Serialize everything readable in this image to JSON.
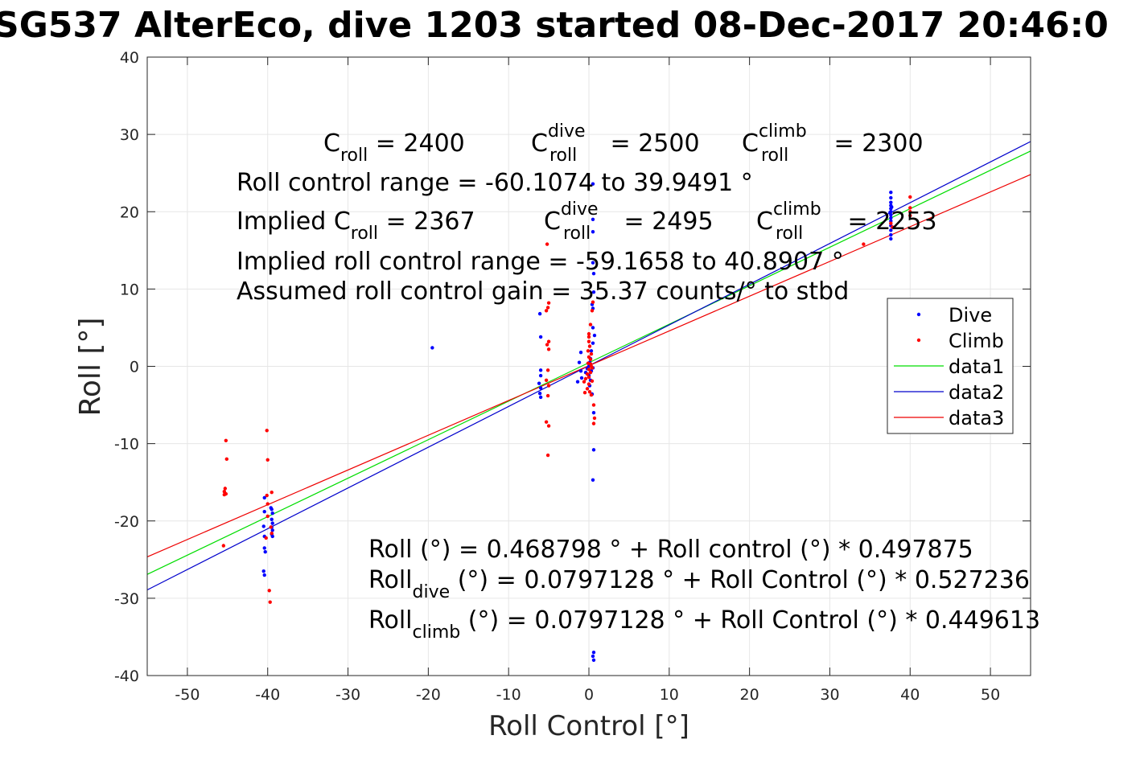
{
  "chart_data": {
    "type": "scatter",
    "title": "SG537 AlterEco, dive 1203 started 08-Dec-2017 20:46:0",
    "xlabel": "Roll Control [°]",
    "ylabel": "Roll [°]",
    "xlim": [
      -55,
      55
    ],
    "ylim": [
      -40,
      40
    ],
    "xticks": [
      -50,
      -40,
      -30,
      -20,
      -10,
      0,
      10,
      20,
      30,
      40,
      50
    ],
    "yticks": [
      -40,
      -30,
      -20,
      -10,
      0,
      10,
      20,
      30,
      40
    ],
    "grid": true,
    "legend": {
      "placement": "right",
      "entries": [
        {
          "name": "Dive",
          "color": "#0000ff",
          "style": "marker"
        },
        {
          "name": "Climb",
          "color": "#ff0000",
          "style": "marker"
        },
        {
          "name": "data1",
          "color": "#00dd00",
          "style": "line"
        },
        {
          "name": "data2",
          "color": "#0000cc",
          "style": "line"
        },
        {
          "name": "data3",
          "color": "#ee0000",
          "style": "line"
        }
      ]
    },
    "series": [
      {
        "name": "Dive",
        "kind": "points",
        "color": "#0000ff",
        "points": [
          [
            37.6,
            22.5
          ],
          [
            37.6,
            21.8
          ],
          [
            37.6,
            21.2
          ],
          [
            37.6,
            20.8
          ],
          [
            37.6,
            20.4
          ],
          [
            37.6,
            20.0
          ],
          [
            37.6,
            19.6
          ],
          [
            37.6,
            19.2
          ],
          [
            37.6,
            18.8
          ],
          [
            37.6,
            18.2
          ],
          [
            37.6,
            17.6
          ],
          [
            37.6,
            17.0
          ],
          [
            37.6,
            16.5
          ],
          [
            37.5,
            19.9
          ],
          [
            37.7,
            20.6
          ],
          [
            0.5,
            23.6
          ],
          [
            0.5,
            19.0
          ],
          [
            0.5,
            17.4
          ],
          [
            0.5,
            13.4
          ],
          [
            0.6,
            12.0
          ],
          [
            0.6,
            9.6
          ],
          [
            0.4,
            8.0
          ],
          [
            0.5,
            7.5
          ],
          [
            0.5,
            5.0
          ],
          [
            0.7,
            4.0
          ],
          [
            0.5,
            3.0
          ],
          [
            0.3,
            2.0
          ],
          [
            0.2,
            1.0
          ],
          [
            0.1,
            0.5
          ],
          [
            0.0,
            0.0
          ],
          [
            -0.2,
            -0.3
          ],
          [
            0.3,
            -0.6
          ],
          [
            -0.4,
            -0.8
          ],
          [
            0.0,
            -1.2
          ],
          [
            0.2,
            -1.8
          ],
          [
            0.1,
            -2.5
          ],
          [
            0.4,
            -3.6
          ],
          [
            0.6,
            -6.0
          ],
          [
            0.6,
            -10.8
          ],
          [
            0.5,
            -14.7
          ],
          [
            0.6,
            -37.0
          ],
          [
            0.5,
            -37.5
          ],
          [
            0.6,
            -38.0
          ],
          [
            -1.0,
            1.8
          ],
          [
            -1.2,
            0.5
          ],
          [
            -1.0,
            -0.6
          ],
          [
            -0.9,
            -1.5
          ],
          [
            -1.4,
            -2.0
          ],
          [
            0.5,
            -0.2
          ],
          [
            -6.0,
            3.8
          ],
          [
            -6.0,
            -0.5
          ],
          [
            -6.0,
            -1.2
          ],
          [
            -6.2,
            -2.2
          ],
          [
            -6.0,
            -2.8
          ],
          [
            -6.1,
            -3.5
          ],
          [
            -6.0,
            -4.0
          ],
          [
            -6.1,
            6.8
          ],
          [
            -19.5,
            2.4
          ],
          [
            -40.4,
            -17.0
          ],
          [
            -40.4,
            -18.8
          ],
          [
            -40.5,
            -20.7
          ],
          [
            -40.4,
            -22.0
          ],
          [
            -40.4,
            -23.5
          ],
          [
            -40.3,
            -24.0
          ],
          [
            -40.5,
            -26.5
          ],
          [
            -40.4,
            -27.0
          ],
          [
            -39.5,
            -18.5
          ],
          [
            -39.4,
            -19.0
          ],
          [
            -39.5,
            -19.8
          ],
          [
            -39.4,
            -20.3
          ],
          [
            -39.5,
            -20.8
          ],
          [
            -39.4,
            -21.2
          ],
          [
            -39.5,
            -21.7
          ],
          [
            -39.4,
            -22.0
          ],
          [
            -39.6,
            -18.3
          ]
        ]
      },
      {
        "name": "Climb",
        "kind": "points",
        "color": "#ff0000",
        "points": [
          [
            40.0,
            21.9
          ],
          [
            40.0,
            20.5
          ],
          [
            40.0,
            20.0
          ],
          [
            40.0,
            19.5
          ],
          [
            37.6,
            18.5
          ],
          [
            37.8,
            18.0
          ],
          [
            34.2,
            15.8
          ],
          [
            -5.2,
            15.8
          ],
          [
            -5.0,
            8.2
          ],
          [
            -5.1,
            7.6
          ],
          [
            -5.3,
            7.2
          ],
          [
            -5.0,
            3.2
          ],
          [
            -5.2,
            2.8
          ],
          [
            -5.0,
            2.2
          ],
          [
            -5.1,
            -0.5
          ],
          [
            -5.3,
            -1.8
          ],
          [
            -5.0,
            -2.5
          ],
          [
            -5.1,
            -3.8
          ],
          [
            -5.3,
            -7.2
          ],
          [
            -5.0,
            -7.7
          ],
          [
            -5.1,
            -11.5
          ],
          [
            0.5,
            8.3
          ],
          [
            0.4,
            7.2
          ],
          [
            0.2,
            5.4
          ],
          [
            0.0,
            4.2
          ],
          [
            0.0,
            3.8
          ],
          [
            0.0,
            3.2
          ],
          [
            0.1,
            2.6
          ],
          [
            -0.1,
            2.0
          ],
          [
            0.3,
            1.6
          ],
          [
            0.0,
            1.2
          ],
          [
            0.2,
            0.9
          ],
          [
            -0.1,
            0.4
          ],
          [
            0.3,
            0.0
          ],
          [
            0.0,
            -0.4
          ],
          [
            0.2,
            -0.8
          ],
          [
            -0.2,
            -1.0
          ],
          [
            0.0,
            -1.4
          ],
          [
            0.4,
            -1.9
          ],
          [
            0.0,
            -2.3
          ],
          [
            -0.2,
            -2.9
          ],
          [
            0.1,
            -3.3
          ],
          [
            0.3,
            -3.7
          ],
          [
            0.6,
            -5.0
          ],
          [
            0.7,
            -6.7
          ],
          [
            0.6,
            -7.4
          ],
          [
            -0.4,
            -1.6
          ],
          [
            -0.6,
            -2.0
          ],
          [
            -0.5,
            -3.4
          ],
          [
            0.4,
            -0.2
          ],
          [
            0.2,
            0.3
          ],
          [
            -45.2,
            -9.6
          ],
          [
            -45.1,
            -12.0
          ],
          [
            -45.3,
            -15.8
          ],
          [
            -45.4,
            -16.2
          ],
          [
            -45.2,
            -16.5
          ],
          [
            -45.4,
            -16.6
          ],
          [
            -45.5,
            -23.2
          ],
          [
            -40.1,
            -8.3
          ],
          [
            -40.0,
            -12.1
          ],
          [
            -40.1,
            -16.7
          ],
          [
            -40.0,
            -17.8
          ],
          [
            -39.5,
            -16.3
          ],
          [
            -39.6,
            -20.8
          ],
          [
            -39.5,
            -21.6
          ],
          [
            -39.8,
            -29.0
          ],
          [
            -39.7,
            -30.5
          ],
          [
            -40.2,
            -22.2
          ],
          [
            -40.0,
            -19.4
          ]
        ]
      },
      {
        "name": "data1",
        "kind": "line",
        "color": "#00dd00",
        "intercept": 0.468798,
        "slope": 0.497875
      },
      {
        "name": "data2",
        "kind": "line",
        "color": "#0000cc",
        "intercept": 0.0797128,
        "slope": 0.527236
      },
      {
        "name": "data3",
        "kind": "line",
        "color": "#ee0000",
        "intercept": 0.0797128,
        "slope": 0.449613
      }
    ],
    "annotations": {
      "c_roll": {
        "base": "C",
        "sub": "roll",
        "sup": "",
        "value": " = 2400"
      },
      "c_roll_dive": {
        "base": "C",
        "sub": "roll",
        "sup": "dive",
        "value": " = 2500"
      },
      "c_roll_climb": {
        "base": "C",
        "sub": "roll",
        "sup": "climb",
        "value": " = 2300"
      },
      "range": "Roll control range = -60.1074 to 39.9491 °",
      "implied_prefix": "Implied C",
      "implied_c_roll": {
        "sub": "roll",
        "value": " = 2367"
      },
      "implied_c_dive": {
        "base": "C",
        "sub": "roll",
        "sup": "dive",
        "value": " = 2495"
      },
      "implied_c_climb": {
        "base": "C",
        "sub": "roll",
        "sup": "climb",
        "value": " = 2253"
      },
      "implied_range": "Implied roll control range = -59.1658 to 40.8907 °",
      "gain": "Assumed roll control gain = 35.37 counts/° to stbd",
      "fit_all": "Roll (°) = 0.468798 ° + Roll control (°) * 0.497875",
      "fit_dive": {
        "base": "Roll",
        "sub": "dive",
        "rest": " (°) = 0.0797128 ° + Roll Control (°) * 0.527236"
      },
      "fit_climb": {
        "base": "Roll",
        "sub": "climb",
        "rest": " (°) = 0.0797128 ° + Roll Control (°) * 0.449613"
      }
    }
  }
}
